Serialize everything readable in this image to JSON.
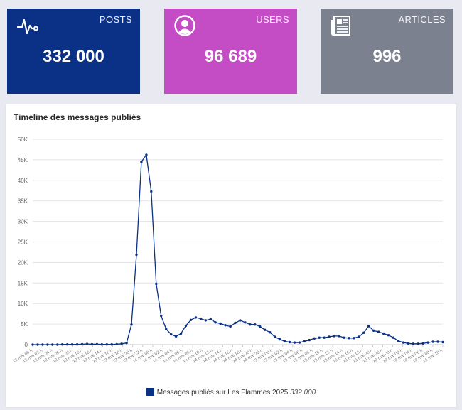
{
  "cards": [
    {
      "label": "POSTS",
      "value": "332 000",
      "icon": "pulse-icon",
      "color": "#0b3187"
    },
    {
      "label": "USERS",
      "value": "96 689",
      "icon": "user-circle-icon",
      "color": "#c44cc4"
    },
    {
      "label": "ARTICLES",
      "value": "996",
      "icon": "newspaper-icon",
      "color": "#7c8190"
    }
  ],
  "chart_data": {
    "type": "line",
    "title": "Timeline des messages publiés",
    "xlabel": "",
    "ylabel": "",
    "ylim": [
      0,
      50000
    ],
    "yticks": [
      "0",
      "5K",
      "10K",
      "15K",
      "20K",
      "25K",
      "30K",
      "35K",
      "40K",
      "45K",
      "50K"
    ],
    "grid": true,
    "legend_position": "bottom",
    "xtick_labels": [
      "13 mai 00 h",
      "13 mai 02 h",
      "13 mai 04 h",
      "13 mai 06 h",
      "13 mai 08 h",
      "13 mai 10 h",
      "13 mai 12 h",
      "13 mai 14 h",
      "13 mai 16 h",
      "13 mai 18 h",
      "13 mai 20 h",
      "13 mai 22 h",
      "14 mai 00 h",
      "14 mai 02 h",
      "14 mai 04 h",
      "14 mai 06 h",
      "14 mai 08 h",
      "14 mai 10 h",
      "14 mai 12 h",
      "14 mai 14 h",
      "14 mai 16 h",
      "14 mai 18 h",
      "14 mai 20 h",
      "14 mai 22 h",
      "15 mai 00 h",
      "15 mai 02 h",
      "15 mai 04 h",
      "15 mai 06 h",
      "15 mai 08 h",
      "15 mai 10 h",
      "15 mai 12 h",
      "15 mai 14 h",
      "15 mai 16 h",
      "15 mai 18 h",
      "15 mai 20 h",
      "15 mai 22 h",
      "16 mai 00 h",
      "16 mai 02 h",
      "16 mai 04 h",
      "16 mai 06 h",
      "16 mai 08 h",
      "16 mai 10 h"
    ],
    "series": [
      {
        "name": "Messages publiés sur Les Flammes 2025",
        "total": "332 000",
        "color": "#0b3187",
        "values": [
          0,
          0,
          0,
          0,
          0,
          0,
          50,
          50,
          50,
          50,
          100,
          150,
          100,
          100,
          50,
          50,
          50,
          100,
          200,
          400,
          4900,
          21900,
          44500,
          46200,
          37300,
          14800,
          7000,
          3800,
          2500,
          2000,
          2700,
          4600,
          6000,
          6600,
          6300,
          5900,
          6200,
          5400,
          5100,
          4700,
          4400,
          5300,
          5900,
          5400,
          4900,
          4900,
          4400,
          3600,
          3000,
          1900,
          1300,
          800,
          600,
          500,
          500,
          800,
          1100,
          1500,
          1700,
          1700,
          1900,
          2100,
          2100,
          1700,
          1600,
          1600,
          1900,
          2900,
          4500,
          3400,
          3100,
          2700,
          2300,
          1700,
          900,
          500,
          300,
          200,
          200,
          300,
          500,
          700,
          700,
          600
        ]
      }
    ]
  }
}
